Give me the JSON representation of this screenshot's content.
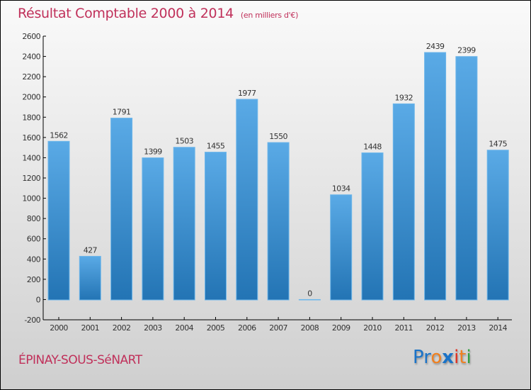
{
  "header": {
    "title": "Résultat Comptable 2000 à 2014",
    "unit": "(en milliers d'€)"
  },
  "footer": {
    "city": "ÉPINAY-SOUS-SéNART",
    "logo": [
      "P",
      "r",
      "o",
      "x",
      "i",
      "t",
      "i"
    ],
    "logo_colors": [
      "#1a73c8",
      "#1a73c8",
      "#f08020",
      "#1a73c8",
      "#e03020",
      "#f08020",
      "#30a040"
    ]
  },
  "colors": {
    "bar_top": "#5aaae6",
    "bar_bottom": "#2374b4",
    "title": "#c0305a"
  },
  "chart_data": {
    "type": "bar",
    "title": "Résultat Comptable 2000 à 2014 (en milliers d'€)",
    "xlabel": "",
    "ylabel": "",
    "categories": [
      "2000",
      "2001",
      "2002",
      "2003",
      "2004",
      "2005",
      "2006",
      "2007",
      "2008",
      "2009",
      "2010",
      "2011",
      "2012",
      "2013",
      "2014"
    ],
    "values": [
      1562,
      427,
      1791,
      1399,
      1503,
      1455,
      1977,
      1550,
      0,
      1034,
      1448,
      1932,
      2439,
      2399,
      1475
    ],
    "ylim": [
      -200,
      2600
    ],
    "yticks": [
      -200,
      0,
      200,
      400,
      600,
      800,
      1000,
      1200,
      1400,
      1600,
      1800,
      2000,
      2200,
      2400,
      2600
    ],
    "grid": false,
    "legend": "none"
  }
}
